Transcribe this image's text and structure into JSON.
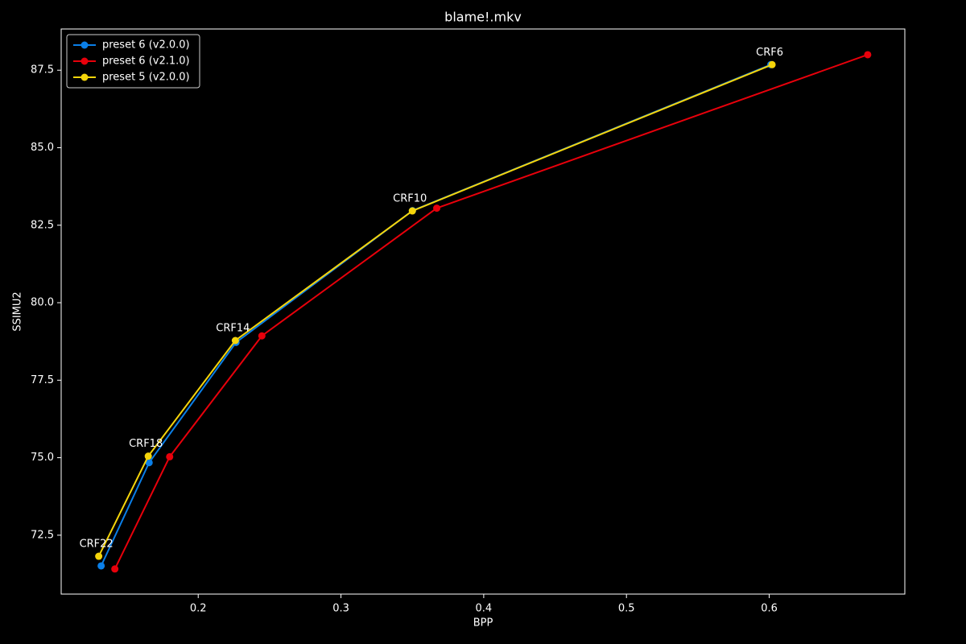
{
  "chart_data": {
    "type": "line",
    "title": "blame!.mkv",
    "x_label": "BPP",
    "y_label": "SSIMU2",
    "xlim": [
      0.104,
      0.695
    ],
    "ylim": [
      70.6,
      88.83
    ],
    "xticks": [
      0.2,
      0.3,
      0.4,
      0.5,
      0.6
    ],
    "yticks": [
      72.5,
      {
        "value": 75,
        "label": "75.0"
      },
      77.5,
      {
        "value": 80,
        "label": "80.0"
      },
      82.5,
      {
        "value": 85,
        "label": "85.0"
      },
      87.5
    ],
    "legend": "upper left",
    "series": [
      {
        "name": "preset 6 (v2.0.0)",
        "color": "#0a7fe8",
        "x": [
          0.132,
          0.1656,
          0.2265,
          0.3501,
          0.6011
        ],
        "values": [
          71.51,
          74.84,
          78.72,
          82.97,
          87.68
        ]
      },
      {
        "name": "preset 6 (v2.1.0)",
        "color": "#e8000b",
        "x": [
          0.1416,
          0.18,
          0.2446,
          0.3671,
          0.669
        ],
        "values": [
          71.41,
          75.03,
          78.93,
          83.05,
          88.0
        ]
      },
      {
        "name": "preset 5 (v2.0.0)",
        "color": "#f5d50a",
        "x": [
          0.1303,
          0.165,
          0.226,
          0.35,
          0.602
        ],
        "values": [
          71.82,
          75.05,
          78.78,
          82.96,
          87.68
        ],
        "point_labels": [
          "CRF22",
          "CRF18",
          "CRF14",
          "CRF10",
          "CRF6"
        ]
      }
    ]
  }
}
